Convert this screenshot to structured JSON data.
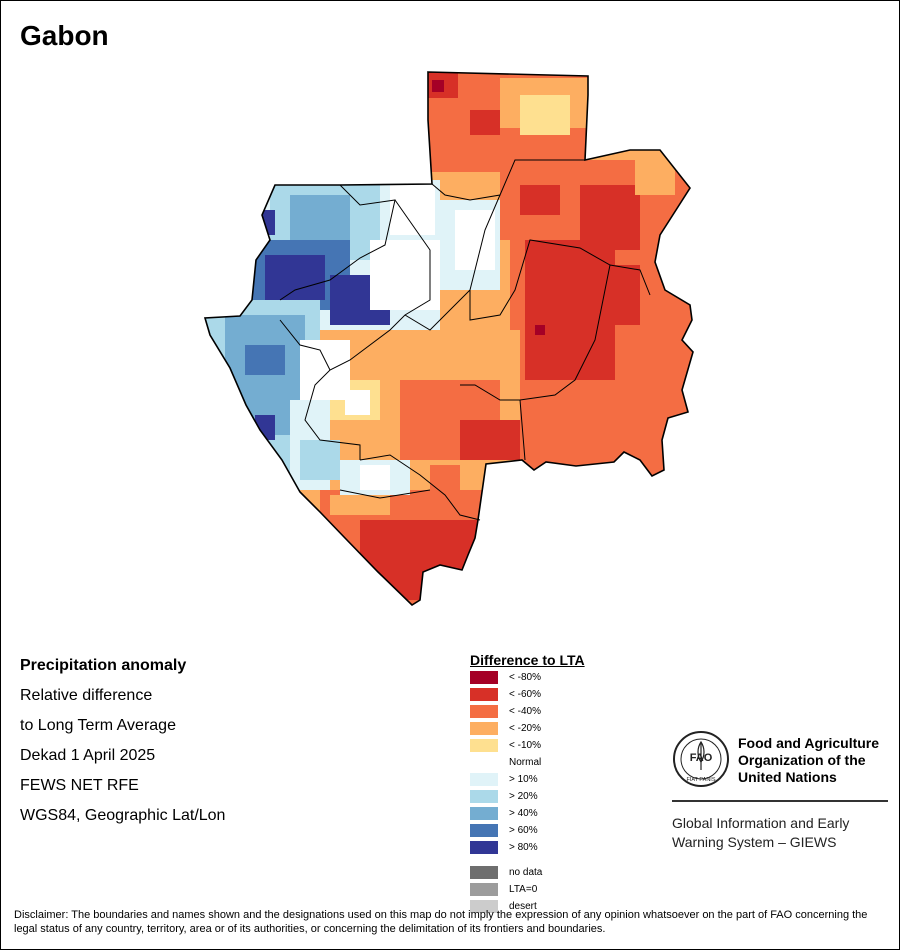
{
  "map_title": "Gabon",
  "info": {
    "heading": "Precipitation anomaly",
    "lines": [
      "Relative difference",
      "to Long Term Average",
      "Dekad 1 April 2025",
      "FEWS NET RFE",
      "WGS84, Geographic Lat/Lon"
    ]
  },
  "legend": {
    "title": "Difference to LTA",
    "items": [
      {
        "label": "< -80%",
        "color": "#a50026"
      },
      {
        "label": "< -60%",
        "color": "#d73027"
      },
      {
        "label": "< -40%",
        "color": "#f46d43"
      },
      {
        "label": "< -20%",
        "color": "#fdae61"
      },
      {
        "label": "< -10%",
        "color": "#fee090"
      },
      {
        "label": "Normal",
        "color": "#ffffff"
      },
      {
        "label": "> 10%",
        "color": "#e0f3f8"
      },
      {
        "label": "> 20%",
        "color": "#abd9e9"
      },
      {
        "label": "> 40%",
        "color": "#74add1"
      },
      {
        "label": "> 60%",
        "color": "#4575b4"
      },
      {
        "label": "> 80%",
        "color": "#313695"
      }
    ],
    "extra": [
      {
        "label": "no data",
        "color": "#6e6e6e"
      },
      {
        "label": "LTA=0",
        "color": "#9c9c9c"
      },
      {
        "label": "desert",
        "color": "#cccccc"
      }
    ]
  },
  "fao": {
    "logo_letters": "FAO",
    "logo_ring_text": "FIAT PANIS",
    "org_name": "Food and Agriculture Organization of the United Nations",
    "system_name": "Global Information and Early Warning System – GIEWS"
  },
  "disclaimer": "Disclaimer: The boundaries and names shown and the designations used on this map do not imply the expression of any opinion whatsoever on the part of FAO concerning the legal status of any country, territory, area or of its authorities, or concerning the delimitation of its frontiers and boundaries."
}
